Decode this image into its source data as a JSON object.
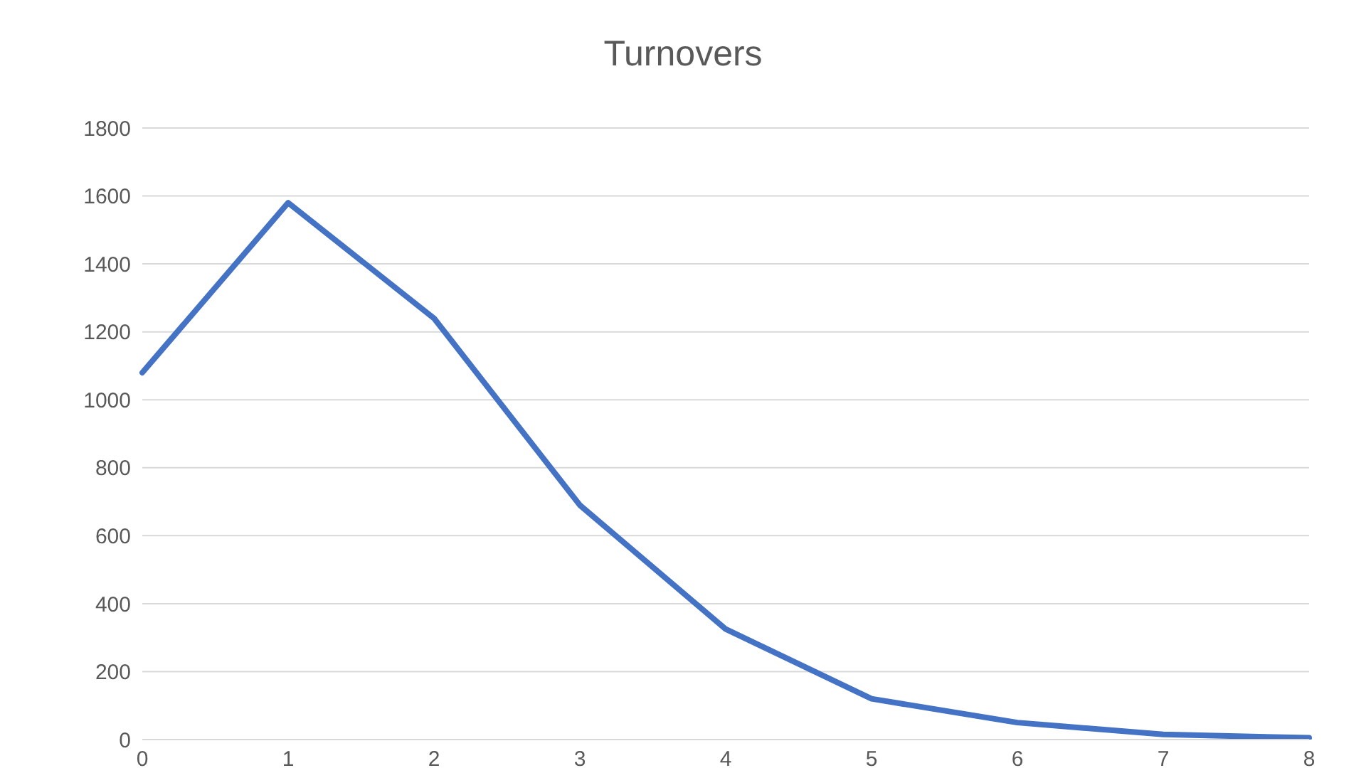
{
  "chart_data": {
    "type": "line",
    "title": "Turnovers",
    "categories": [
      "0",
      "1",
      "2",
      "3",
      "4",
      "5",
      "6",
      "7",
      "8"
    ],
    "series": [
      {
        "color": "#4472c4",
        "values": [
          1080,
          1580,
          1240,
          690,
          325,
          120,
          50,
          15,
          5
        ]
      }
    ],
    "ylim": [
      0,
      1800
    ],
    "yticks": [
      0,
      200,
      400,
      600,
      800,
      1000,
      1200,
      1400,
      1600,
      1800
    ],
    "grid": "y",
    "legend": false,
    "marker": "none",
    "line_style": "solid"
  }
}
